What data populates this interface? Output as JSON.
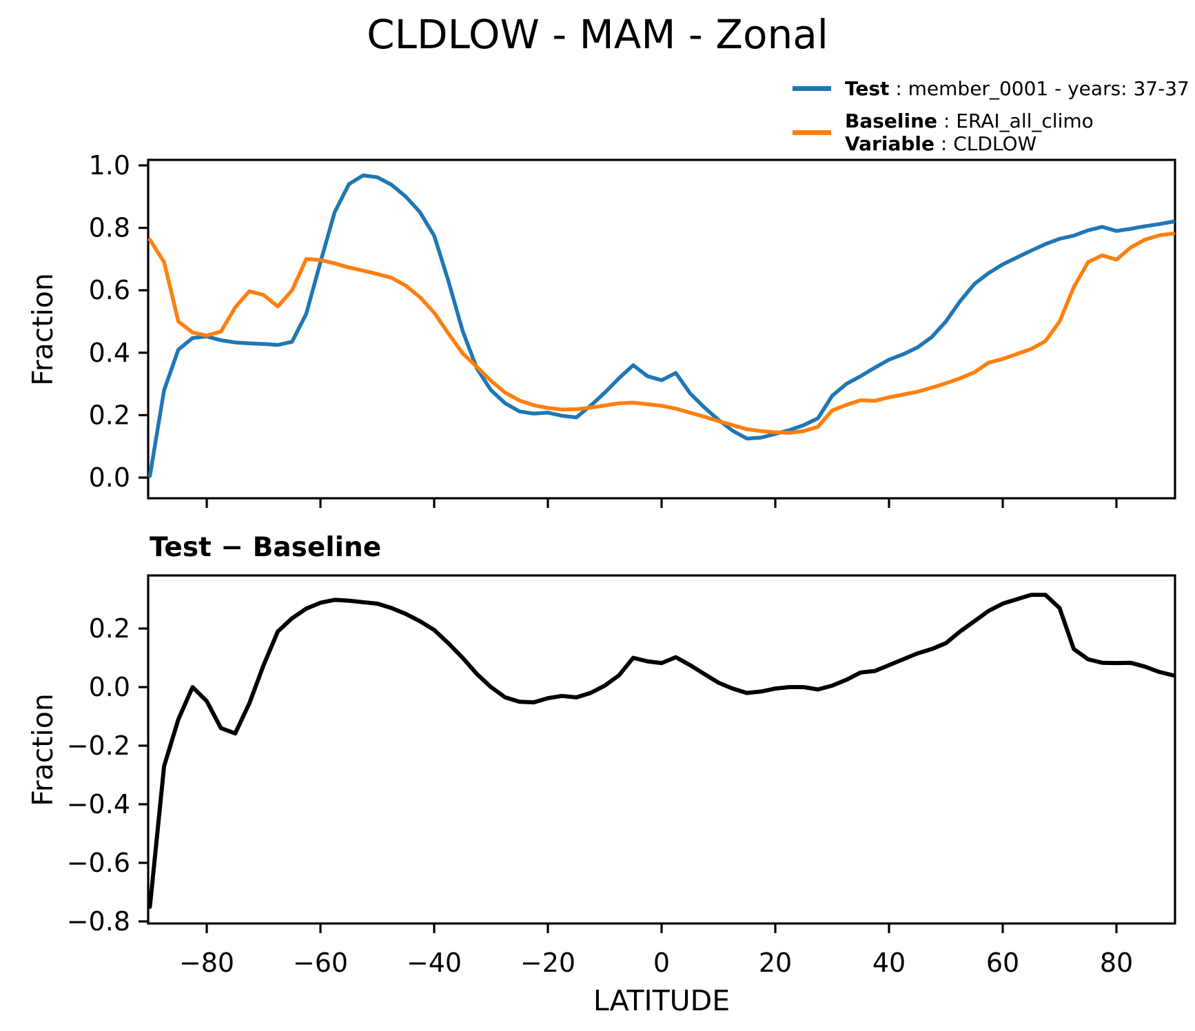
{
  "figure_title": "CLDLOW - MAM - Zonal",
  "legend": {
    "entries": [
      {
        "swatch_color": "#1f77b4",
        "label": "Test",
        "sep": " : ",
        "value": "member_0001 - years: 37-37"
      },
      {
        "swatch_color": "#ff7f0e",
        "label": "Baseline",
        "sep": " : ",
        "value": "ERAI_all_climo",
        "label2": "Variable",
        "sep2": " : ",
        "value2": "CLDLOW"
      }
    ]
  },
  "chart_data": {
    "type": "line",
    "grid": false,
    "xlabel": "LATITUDE",
    "xlim": [
      -90,
      90
    ],
    "xtick_values": [
      -80,
      -60,
      -40,
      -20,
      0,
      20,
      40,
      60,
      80
    ],
    "xtick_labels": [
      "−80",
      "−60",
      "−40",
      "−20",
      "0",
      "20",
      "40",
      "60",
      "80"
    ],
    "x": [
      -90,
      -87.5,
      -85,
      -82.5,
      -80,
      -77.5,
      -75,
      -72.5,
      -70,
      -67.5,
      -65,
      -62.5,
      -60,
      -57.5,
      -55,
      -52.5,
      -50,
      -47.5,
      -45,
      -42.5,
      -40,
      -37.5,
      -35,
      -32.5,
      -30,
      -27.5,
      -25,
      -22.5,
      -20,
      -17.5,
      -15,
      -12.5,
      -10,
      -7.5,
      -5,
      -2.5,
      0,
      2.5,
      5,
      7.5,
      10,
      12.5,
      15,
      17.5,
      20,
      22.5,
      25,
      27.5,
      30,
      32.5,
      35,
      37.5,
      40,
      42.5,
      45,
      47.5,
      50,
      52.5,
      55,
      57.5,
      60,
      62.5,
      65,
      67.5,
      70,
      72.5,
      75,
      77.5,
      80,
      82.5,
      85,
      87.5,
      90
    ],
    "panels": [
      {
        "title": "CLDLOW - MAM - Zonal",
        "ylabel": "Fraction",
        "ylim": [
          -0.066,
          1.018
        ],
        "ytick_values": [
          0.0,
          0.2,
          0.4,
          0.6,
          0.8,
          1.0
        ],
        "ytick_labels": [
          "0.0",
          "0.2",
          "0.4",
          "0.6",
          "0.8",
          "1.0"
        ],
        "legend_position": "upper right, above axes",
        "series": [
          {
            "name": "Test",
            "color": "#1f77b4",
            "values": [
              0.005,
              0.28,
              0.41,
              0.447,
              0.452,
              0.44,
              0.433,
              0.43,
              0.428,
              0.425,
              0.435,
              0.525,
              0.69,
              0.85,
              0.94,
              0.968,
              0.962,
              0.938,
              0.9,
              0.85,
              0.775,
              0.63,
              0.47,
              0.35,
              0.28,
              0.238,
              0.212,
              0.205,
              0.208,
              0.198,
              0.193,
              0.23,
              0.272,
              0.318,
              0.36,
              0.325,
              0.312,
              0.335,
              0.27,
              0.225,
              0.185,
              0.15,
              0.125,
              0.128,
              0.14,
              0.152,
              0.168,
              0.19,
              0.262,
              0.3,
              0.325,
              0.352,
              0.378,
              0.395,
              0.417,
              0.45,
              0.5,
              0.565,
              0.62,
              0.655,
              0.683,
              0.705,
              0.727,
              0.748,
              0.765,
              0.775,
              0.792,
              0.803,
              0.79,
              0.797,
              0.805,
              0.812,
              0.82
            ]
          },
          {
            "name": "Baseline",
            "color": "#ff7f0e",
            "values": [
              0.762,
              0.69,
              0.5,
              0.465,
              0.455,
              0.468,
              0.545,
              0.597,
              0.585,
              0.548,
              0.6,
              0.7,
              0.697,
              0.686,
              0.673,
              0.663,
              0.652,
              0.64,
              0.615,
              0.578,
              0.528,
              0.462,
              0.398,
              0.355,
              0.31,
              0.272,
              0.247,
              0.232,
              0.223,
              0.218,
              0.219,
              0.224,
              0.231,
              0.238,
              0.24,
              0.235,
              0.23,
              0.221,
              0.208,
              0.195,
              0.181,
              0.168,
              0.155,
              0.149,
              0.145,
              0.143,
              0.149,
              0.163,
              0.215,
              0.233,
              0.248,
              0.246,
              0.257,
              0.266,
              0.275,
              0.288,
              0.302,
              0.318,
              0.337,
              0.368,
              0.38,
              0.396,
              0.412,
              0.437,
              0.5,
              0.61,
              0.69,
              0.712,
              0.698,
              0.737,
              0.762,
              0.776,
              0.782
            ]
          }
        ]
      },
      {
        "title": "Test − Baseline",
        "ylabel": "Fraction",
        "xlabel": "LATITUDE",
        "ylim": [
          -0.807,
          0.381
        ],
        "ytick_values": [
          0.2,
          0.0,
          -0.2,
          -0.4,
          -0.6,
          -0.8
        ],
        "ytick_labels": [
          "0.2",
          "0.0",
          "−0.2",
          "−0.4",
          "−0.6",
          "−0.8"
        ],
        "series": [
          {
            "name": "Test − Baseline",
            "color": "#000000",
            "values": [
              -0.75,
              -0.27,
              -0.11,
              0.0,
              -0.048,
              -0.14,
              -0.158,
              -0.055,
              0.075,
              0.19,
              0.235,
              0.268,
              0.288,
              0.298,
              0.295,
              0.29,
              0.285,
              0.27,
              0.25,
              0.225,
              0.195,
              0.15,
              0.1,
              0.045,
              0.0,
              -0.035,
              -0.05,
              -0.052,
              -0.038,
              -0.03,
              -0.035,
              -0.02,
              0.005,
              0.04,
              0.1,
              0.088,
              0.082,
              0.102,
              0.075,
              0.045,
              0.015,
              -0.005,
              -0.02,
              -0.015,
              -0.005,
              0.0,
              0.0,
              -0.008,
              0.005,
              0.025,
              0.05,
              0.055,
              0.075,
              0.095,
              0.115,
              0.13,
              0.15,
              0.19,
              0.225,
              0.26,
              0.285,
              0.3,
              0.315,
              0.315,
              0.27,
              0.13,
              0.095,
              0.083,
              0.082,
              0.083,
              0.07,
              0.052,
              0.04
            ]
          }
        ]
      }
    ]
  }
}
